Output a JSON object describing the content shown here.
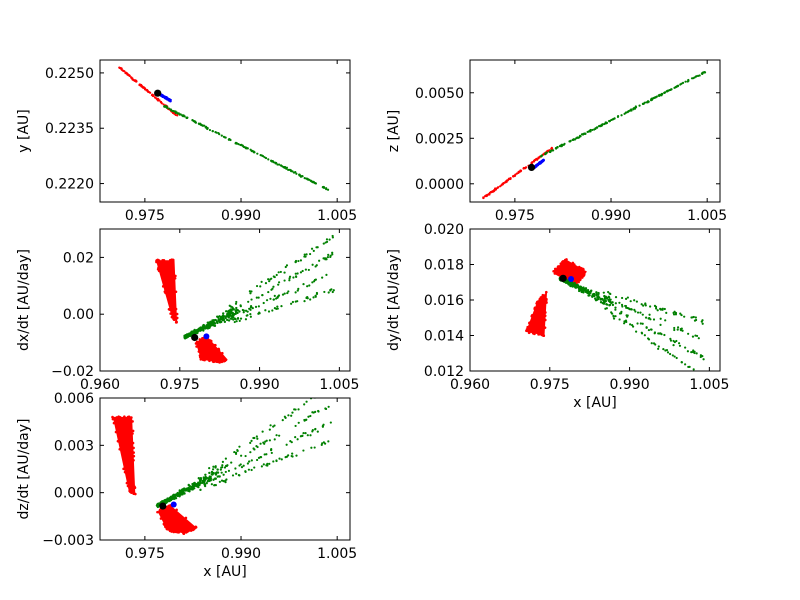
{
  "chart_data": [
    {
      "id": "xy",
      "type": "scatter",
      "xlabel": "",
      "ylabel": "y [AU]",
      "xlim": [
        0.968,
        1.007
      ],
      "ylim": [
        0.2215,
        0.22535
      ],
      "xticks": [
        "0.975",
        "0.990",
        "1.005"
      ],
      "xtick_values": [
        0.975,
        0.99,
        1.005
      ],
      "yticks": [
        "0.2220",
        "0.2235",
        "0.2250"
      ],
      "ytick_values": [
        0.222,
        0.2235,
        0.225
      ],
      "series": [
        {
          "color": "#ff0000",
          "shape": "line-cloud",
          "x": [
            0.971,
            0.98
          ],
          "y": [
            0.22515,
            0.22385
          ]
        },
        {
          "color": "#008000",
          "shape": "line-cloud",
          "x": [
            0.978,
            1.004
          ],
          "y": [
            0.2241,
            0.2218
          ]
        },
        {
          "color": "#0000ff",
          "shape": "line-cloud",
          "x": [
            0.9775,
            0.979
          ],
          "y": [
            0.2244,
            0.22425
          ]
        },
        {
          "color": "#000000",
          "shape": "marker",
          "x": [
            0.977
          ],
          "y": [
            0.22445
          ]
        }
      ]
    },
    {
      "id": "xz",
      "type": "scatter",
      "xlabel": "",
      "ylabel": "z [AU]",
      "xlim": [
        0.968,
        1.007
      ],
      "ylim": [
        -0.001,
        0.0068
      ],
      "xticks": [
        "0.975",
        "0.990",
        "1.005"
      ],
      "xtick_values": [
        0.975,
        0.99,
        1.005
      ],
      "yticks": [
        "0.0000",
        "0.0025",
        "0.0050"
      ],
      "ytick_values": [
        0.0,
        0.0025,
        0.005
      ],
      "series": [
        {
          "color": "#ff0000",
          "shape": "line-cloud",
          "x": [
            0.97,
            0.981
          ],
          "y": [
            -0.0008,
            0.002
          ]
        },
        {
          "color": "#008000",
          "shape": "line-cloud",
          "x": [
            0.979,
            1.005
          ],
          "y": [
            0.0015,
            0.0062
          ]
        },
        {
          "color": "#0000ff",
          "shape": "line-cloud",
          "x": [
            0.978,
            0.9795
          ],
          "y": [
            0.0009,
            0.0013
          ]
        },
        {
          "color": "#000000",
          "shape": "marker",
          "x": [
            0.9776
          ],
          "y": [
            0.0009
          ]
        }
      ]
    },
    {
      "id": "xvx",
      "type": "scatter",
      "xlabel": "",
      "ylabel": "dx/dt [AU/day]",
      "xlim": [
        0.96,
        1.007
      ],
      "ylim": [
        -0.02,
        0.03
      ],
      "xticks": [
        "0.960",
        "0.975",
        "0.990",
        "1.005"
      ],
      "xtick_values": [
        0.96,
        0.975,
        0.99,
        1.005
      ],
      "yticks": [
        "−0.02",
        "0.00",
        "0.02"
      ],
      "ytick_values": [
        -0.02,
        0.0,
        0.02
      ],
      "series": [
        {
          "color": "#ff0000",
          "shape": "polygon",
          "x": [
            0.9705,
            0.974,
            0.9745,
            0.9735
          ],
          "y": [
            0.019,
            0.019,
            -0.003,
            -0.001
          ]
        },
        {
          "color": "#ff0000",
          "shape": "polygon",
          "x": [
            0.978,
            0.98,
            0.984,
            0.9825,
            0.979
          ],
          "y": [
            -0.01,
            -0.0075,
            -0.016,
            -0.017,
            -0.016
          ]
        },
        {
          "color": "#008000",
          "shape": "cloud",
          "x": [
            0.976,
            1.004
          ],
          "y": [
            -0.008,
            0.018
          ]
        },
        {
          "color": "#0000ff",
          "shape": "marker",
          "x": [
            0.98
          ],
          "y": [
            -0.0078
          ]
        },
        {
          "color": "#000000",
          "shape": "marker",
          "x": [
            0.9778
          ],
          "y": [
            -0.0082
          ]
        }
      ]
    },
    {
      "id": "xvy",
      "type": "scatter",
      "xlabel": "x [AU]",
      "ylabel": "dy/dt [AU/day]",
      "xlim": [
        0.96,
        1.007
      ],
      "ylim": [
        0.012,
        0.02
      ],
      "xticks": [
        "0.960",
        "0.975",
        "0.990",
        "1.005"
      ],
      "xtick_values": [
        0.96,
        0.975,
        0.99,
        1.005
      ],
      "yticks": [
        "0.012",
        "0.014",
        "0.016",
        "0.018",
        "0.020"
      ],
      "ytick_values": [
        0.012,
        0.014,
        0.016,
        0.018,
        0.02
      ],
      "series": [
        {
          "color": "#ff0000",
          "shape": "polygon",
          "x": [
            0.9705,
            0.974,
            0.9745,
            0.9725
          ],
          "y": [
            0.0142,
            0.014,
            0.0165,
            0.0158
          ]
        },
        {
          "color": "#ff0000",
          "shape": "polygon",
          "x": [
            0.9755,
            0.978,
            0.982,
            0.98
          ],
          "y": [
            0.0176,
            0.0183,
            0.0176,
            0.0169
          ]
        },
        {
          "color": "#008000",
          "shape": "cloud",
          "x": [
            0.977,
            1.004
          ],
          "y": [
            0.0172,
            0.0132
          ]
        },
        {
          "color": "#0000ff",
          "shape": "marker",
          "x": [
            0.979
          ],
          "y": [
            0.01718
          ]
        },
        {
          "color": "#000000",
          "shape": "marker",
          "x": [
            0.9775
          ],
          "y": [
            0.01722
          ]
        }
      ]
    },
    {
      "id": "xvz",
      "type": "scatter",
      "xlabel": "x [AU]",
      "ylabel": "dz/dt [AU/day]",
      "xlim": [
        0.968,
        1.007
      ],
      "ylim": [
        -0.003,
        0.006
      ],
      "xticks": [
        "0.975",
        "0.990",
        "1.005"
      ],
      "xtick_values": [
        0.975,
        0.99,
        1.005
      ],
      "yticks": [
        "−0.003",
        "0.000",
        "0.003",
        "0.006"
      ],
      "ytick_values": [
        -0.003,
        0.0,
        0.003,
        0.006
      ],
      "series": [
        {
          "color": "#ff0000",
          "shape": "polygon",
          "x": [
            0.97,
            0.973,
            0.9735,
            0.9725
          ],
          "y": [
            0.0048,
            0.0048,
            -0.0001,
            0.0001
          ]
        },
        {
          "color": "#ff0000",
          "shape": "polygon",
          "x": [
            0.977,
            0.979,
            0.983,
            0.9815,
            0.9785
          ],
          "y": [
            -0.0012,
            -0.0008,
            -0.0022,
            -0.0026,
            -0.0024
          ]
        },
        {
          "color": "#008000",
          "shape": "cloud",
          "x": [
            0.977,
            1.004
          ],
          "y": [
            -0.0008,
            0.005
          ]
        },
        {
          "color": "#0000ff",
          "shape": "marker",
          "x": [
            0.9795
          ],
          "y": [
            -0.00075
          ]
        },
        {
          "color": "#000000",
          "shape": "marker",
          "x": [
            0.9778
          ],
          "y": [
            -0.00085
          ]
        }
      ]
    }
  ]
}
